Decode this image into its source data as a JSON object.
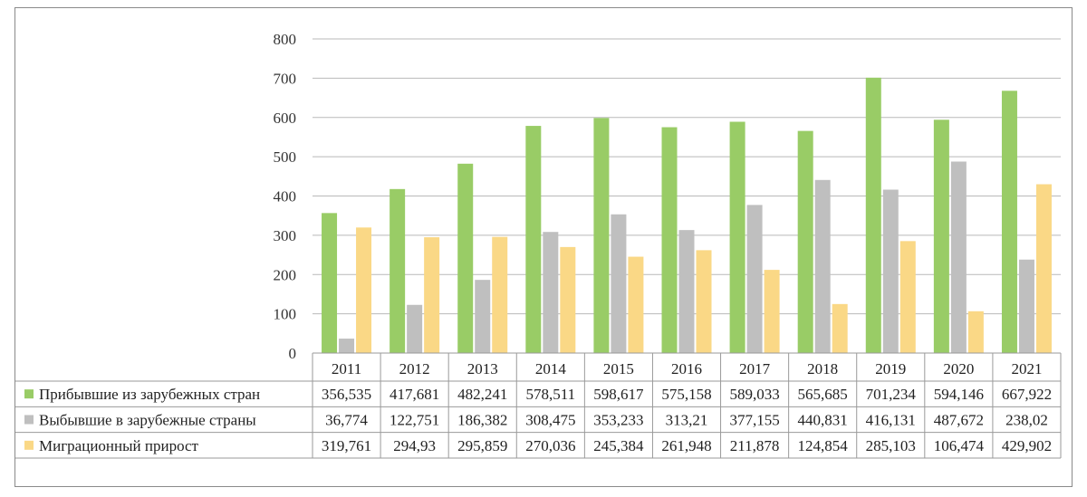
{
  "chart_data": {
    "type": "bar",
    "categories": [
      "2011",
      "2012",
      "2013",
      "2014",
      "2015",
      "2016",
      "2017",
      "2018",
      "2019",
      "2020",
      "2021"
    ],
    "series": [
      {
        "name": "Прибывшие из зарубежных стран",
        "color": "#99CC66",
        "values": [
          356.535,
          417.681,
          482.241,
          578.511,
          598.617,
          575.158,
          589.033,
          565.685,
          701.234,
          594.146,
          667.922
        ],
        "labels": [
          "356,535",
          "417,681",
          "482,241",
          "578,511",
          "598,617",
          "575,158",
          "589,033",
          "565,685",
          "701,234",
          "594,146",
          "667,922"
        ]
      },
      {
        "name": "Выбывшие в зарубежные страны",
        "color": "#BFBFBF",
        "values": [
          36.774,
          122.751,
          186.382,
          308.475,
          353.233,
          313.21,
          377.155,
          440.831,
          416.131,
          487.672,
          238.02
        ],
        "labels": [
          "36,774",
          "122,751",
          "186,382",
          "308,475",
          "353,233",
          "313,21",
          "377,155",
          "440,831",
          "416,131",
          "487,672",
          "238,02"
        ]
      },
      {
        "name": "Миграционный прирост",
        "color": "#FAD886",
        "values": [
          319.761,
          294.93,
          295.859,
          270.036,
          245.384,
          261.948,
          211.878,
          124.854,
          285.103,
          106.474,
          429.902
        ],
        "labels": [
          "319,761",
          "294,93",
          "295,859",
          "270,036",
          "245,384",
          "261,948",
          "211,878",
          "124,854",
          "285,103",
          "106,474",
          "429,902"
        ]
      }
    ],
    "yticks": [
      "0",
      "100",
      "200",
      "300",
      "400",
      "500",
      "600",
      "700",
      "800"
    ],
    "ylim": [
      0,
      800
    ],
    "grid": true,
    "legend": "data-table"
  }
}
